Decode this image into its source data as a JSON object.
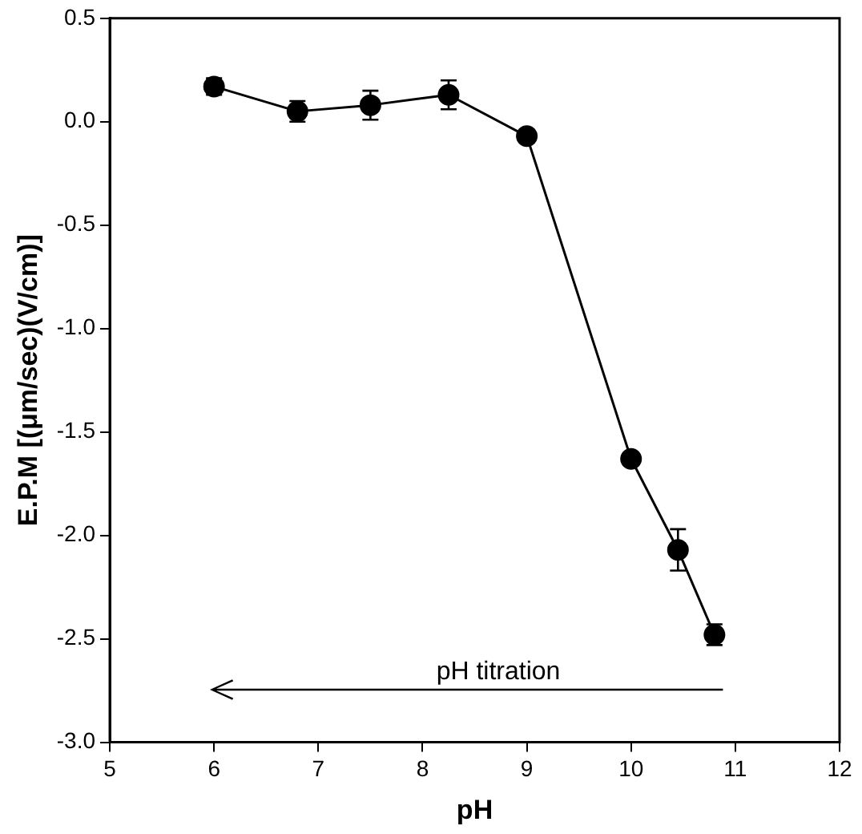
{
  "chart_data": {
    "type": "line",
    "xlabel": "pH",
    "ylabel": "E.P.M [(μm/sec)(V/cm)]",
    "x": [
      6,
      6.8,
      7.5,
      8.25,
      9,
      10,
      10.45,
      10.8
    ],
    "series": [
      {
        "color": "#000000",
        "values": [
          0.17,
          0.05,
          0.08,
          0.13,
          -0.07,
          -1.63,
          -2.07,
          -2.48
        ],
        "errors": [
          0.04,
          0.05,
          0.07,
          0.07,
          0.03,
          0.03,
          0.1,
          0.05
        ]
      }
    ],
    "xlim": [
      5,
      12
    ],
    "xticks": [
      5,
      6,
      7,
      8,
      9,
      10,
      11,
      12
    ],
    "ylim": [
      -3,
      0.5
    ],
    "yticks": [
      {
        "value": -3,
        "label": "-3.0"
      },
      {
        "value": -2.5,
        "label": "-2.5"
      },
      {
        "value": -2,
        "label": "-2.0"
      },
      {
        "value": -1.5,
        "label": "-1.5"
      },
      {
        "value": -1,
        "label": "-1.0"
      },
      {
        "value": -0.5,
        "label": "-0.5"
      },
      {
        "value": 0,
        "label": "0.0"
      },
      {
        "value": 0.5,
        "label": "0.5"
      }
    ],
    "annotations": [
      "pH titration"
    ],
    "marker": "circle",
    "line_style": "solid",
    "grid": false,
    "legend": false
  }
}
